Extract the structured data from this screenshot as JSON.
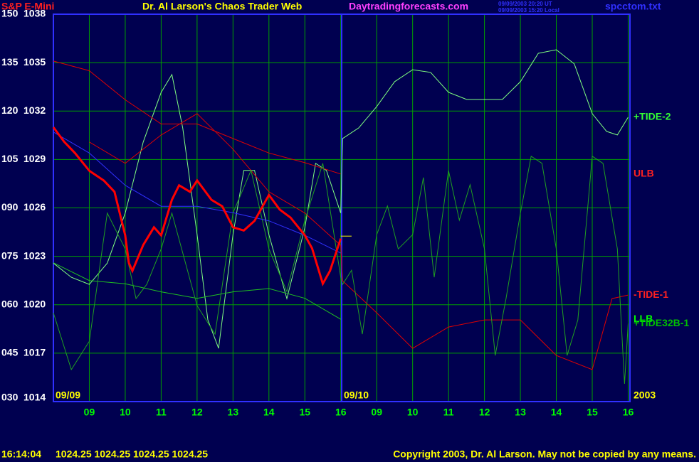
{
  "chart_data": {
    "type": "line",
    "header": {
      "symbol": "S&P E-Mini",
      "title": "Dr. Al Larson's Chaos Trader Web",
      "site": "Daytradingforecasts.com",
      "stamp_ut": "09/09/2003 20:20 UT",
      "stamp_local": "09/09/2003 15:20 Local",
      "file": "spcctom.txt"
    },
    "annotations": {
      "day1": "09/09",
      "day2": "09/10",
      "year": "2003"
    },
    "status": {
      "time": "16:14:04",
      "quote": "1024.25 1024.25 1024.25 1024.25",
      "copyright": "Copyright 2003, Dr. Al Larson. May not be copied by any means."
    },
    "xlim": [
      8,
      24.05
    ],
    "xticks": [
      {
        "value": 9,
        "label": "09"
      },
      10,
      11,
      12,
      13,
      14,
      15,
      16,
      {
        "value": 17,
        "label": "09"
      },
      {
        "value": 18,
        "label": "10"
      },
      {
        "value": 19,
        "label": "11"
      },
      {
        "value": 20,
        "label": "12"
      },
      {
        "value": 21,
        "label": "13"
      },
      {
        "value": 22,
        "label": "14"
      },
      {
        "value": 23,
        "label": "15"
      },
      {
        "value": 24,
        "label": "16"
      }
    ],
    "ylim": [
      30,
      150
    ],
    "yticks": [
      150,
      135,
      120,
      105,
      {
        "value": 90,
        "label": "090"
      },
      {
        "value": 75,
        "label": "075"
      },
      {
        "value": 60,
        "label": "060"
      },
      {
        "value": 45,
        "label": "045"
      },
      {
        "value": 30,
        "label": "030"
      }
    ],
    "y2lim": [
      1014,
      1038
    ],
    "y2ticks": [
      1038,
      1035,
      1032,
      1029,
      1026,
      1023,
      1020,
      1017,
      1014
    ],
    "grid": true,
    "series": [
      {
        "name": "+TIDE-2",
        "color": "#80ff80",
        "label_color": "#33ff33",
        "x": [
          8,
          8.5,
          9,
          9.5,
          10,
          10.5,
          11,
          11.3,
          11.6,
          12,
          12.3,
          12.6,
          13,
          13.3,
          13.6,
          14,
          14.5,
          15,
          15.3,
          15.6,
          16,
          16.05,
          16.5,
          17,
          17.5,
          18,
          18.5,
          19,
          19.5,
          20,
          20.5,
          21,
          21.5,
          22,
          22.5,
          23,
          23.4,
          23.7,
          24
        ],
        "values": [
          72.9,
          68.5,
          66.3,
          72.9,
          88.4,
          110.4,
          125.8,
          131.3,
          114.8,
          81.7,
          55.3,
          46.5,
          81.7,
          101.6,
          101.6,
          81.7,
          61.9,
          83.9,
          103.8,
          101.6,
          88.4,
          111.5,
          114.8,
          121.4,
          129.1,
          132.8,
          132.0,
          125.8,
          123.6,
          123.6,
          123.6,
          129.1,
          137.9,
          139.0,
          134.6,
          119.2,
          113.7,
          112.6,
          118.1
        ]
      },
      {
        "name": "ULB",
        "color": "#e00000",
        "label_color": "#ff2020",
        "axis": "y2",
        "x": [
          8,
          9,
          10,
          11,
          12,
          13,
          14,
          15,
          16
        ],
        "values": [
          1035.1,
          1034.5,
          1032.7,
          1031.2,
          1031.2,
          1030.3,
          1029.4,
          1028.8,
          1028.1
        ]
      },
      {
        "name": "-TIDE-1",
        "color": "#e00000",
        "label_color": "#ff2020",
        "x": [
          9,
          10,
          11,
          12,
          13,
          14,
          15,
          16,
          16.05,
          17,
          18,
          19,
          20,
          21,
          22,
          23,
          23.55,
          24
        ],
        "values": [
          110.4,
          103.8,
          112.6,
          119.2,
          108.2,
          95.0,
          88.4,
          78.4,
          67.4,
          57.5,
          46.5,
          53.1,
          55.3,
          55.3,
          44.3,
          39.9,
          61.9,
          63.0
        ]
      },
      {
        "name": "LLB",
        "color": "#20c020",
        "label_color": "#00ff00",
        "axis": "y2",
        "x": [
          8,
          9,
          10,
          11,
          12,
          13,
          14,
          15,
          16
        ],
        "values": [
          1022.6,
          1021.5,
          1021.3,
          1020.8,
          1020.4,
          1020.8,
          1021.0,
          1020.4,
          1019.1
        ]
      },
      {
        "name": "+TIDE32B-1",
        "color": "#20a020",
        "label_color": "#00c000",
        "x": [
          8,
          8.5,
          9,
          9.5,
          10,
          10.3,
          10.6,
          11,
          11.3,
          12,
          12.5,
          13,
          13.5,
          14,
          14.5,
          15,
          15.5,
          16,
          16.05,
          16.3,
          16.6,
          17,
          17.3,
          17.6,
          18,
          18.3,
          18.6,
          19,
          19.3,
          19.6,
          20,
          20.3,
          20.6,
          21,
          21.3,
          21.6,
          22,
          22.3,
          22.6,
          23,
          23.3,
          23.7,
          23.9,
          24
        ],
        "values": [
          57.5,
          39.9,
          48.7,
          88.4,
          77.3,
          61.9,
          66.3,
          77.3,
          88.4,
          59.7,
          50.9,
          88.4,
          101.6,
          77.3,
          64.1,
          86.2,
          103.8,
          68.5,
          66.3,
          70.7,
          50.9,
          81.7,
          90.6,
          77.3,
          81.7,
          99.4,
          68.5,
          101.6,
          86.2,
          97.2,
          77.3,
          44.3,
          61.9,
          88.4,
          106.0,
          103.8,
          77.3,
          44.3,
          55.3,
          106.0,
          103.8,
          77.3,
          35.5,
          54.2
        ]
      },
      {
        "color": "#3030ff",
        "axis": "y2",
        "x": [
          8,
          9,
          10,
          11,
          12,
          13,
          14,
          15,
          16
        ],
        "values": [
          1030.7,
          1029.4,
          1027.4,
          1026.1,
          1026.1,
          1025.7,
          1025.2,
          1024.3,
          1023.2
        ]
      },
      {
        "color": "#ff0000",
        "axis": "y2",
        "width": 3,
        "x": [
          8,
          8.3,
          8.6,
          9,
          9.4,
          9.7,
          10,
          10.1,
          10.2,
          10.5,
          10.8,
          11,
          11.3,
          11.5,
          11.8,
          12,
          12.4,
          12.7,
          13,
          13.3,
          13.6,
          14,
          14.3,
          14.6,
          15,
          15.2,
          15.5,
          15.7,
          16
        ],
        "values": [
          1031.0,
          1030.1,
          1029.4,
          1028.3,
          1027.7,
          1027.0,
          1024.3,
          1022.6,
          1022.1,
          1023.7,
          1024.8,
          1024.3,
          1026.5,
          1027.4,
          1027.0,
          1027.7,
          1026.5,
          1026.1,
          1024.8,
          1024.6,
          1025.2,
          1026.8,
          1025.9,
          1025.4,
          1024.3,
          1023.5,
          1021.3,
          1022.1,
          1024.1
        ]
      },
      {
        "color": "#ffff00",
        "axis": "y2",
        "x": [
          16,
          16.3
        ],
        "values": [
          1024.25,
          1024.25
        ]
      }
    ]
  }
}
